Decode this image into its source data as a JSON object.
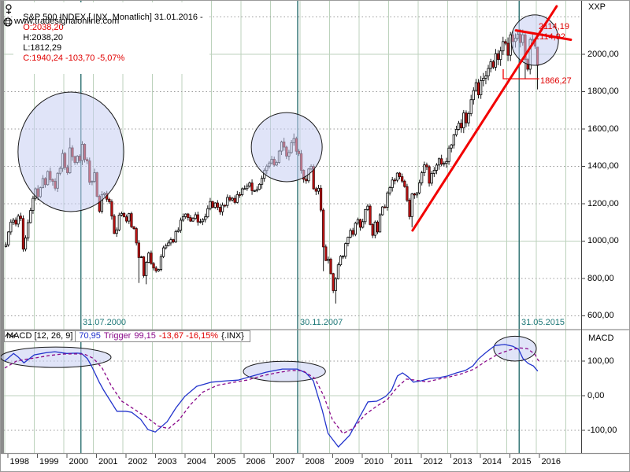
{
  "header": {
    "title": "S&P 500 INDEX [.INX  Monatlich] 31.01.2016 -",
    "open": "O:2038,20",
    "high": "H:2038,20",
    "low": "L:1812,29",
    "close": "C:1940,24 -103,70 -5,07%",
    "right_corner_label": "XXP",
    "watermark": "www.tradesignalonline.com"
  },
  "macd_header": {
    "name": "MACD [12, 26, 9]",
    "value": "70,95",
    "trigger_label": "Trigger",
    "trigger_value": "99,15",
    "change": "-13,67 -16,15%",
    "symbol": "{.INX}",
    "axis_title": "MACD"
  },
  "annotations": {
    "top_level_1": "2114,19",
    "top_level_2": "2114,92",
    "low_level": "1866,27",
    "date_markers": [
      "31.07.2000",
      "30.11.2007",
      "31.05.2015"
    ]
  },
  "colors": {
    "candle_up": "#ffffff",
    "candle_down": "#c81414",
    "candle_down_stroke": "#3a0000",
    "wick": "#000000",
    "macd_line": "#2233cc",
    "trigger_line": "#8a0a8a",
    "annotation_red": "#f20000",
    "marker_teal": "#2a6f6f",
    "grid_green": "#bcd2bc",
    "grid_dot": "#9a9a9a",
    "ellipse_fill": "#c7cdf2",
    "ellipse_stroke": "#1a1a1a",
    "frame": "#8c8c8c"
  },
  "chart_data": {
    "type": "candlestick",
    "title": "S&P 500 INDEX monthly with MACD",
    "axes": {
      "years": [
        "1998",
        "1999",
        "2000",
        "2001",
        "2002",
        "2003",
        "2004",
        "2005",
        "2006",
        "2007",
        "2008",
        "2009",
        "2010",
        "2011",
        "2012",
        "2013",
        "2014",
        "2015",
        "2016"
      ],
      "price_tick_labels": [
        "2000,00",
        "1800,00",
        "1600,00",
        "1400,00",
        "1200,00",
        "1000,00",
        "800,00",
        "600,00"
      ],
      "price_tick_values": [
        2000,
        1800,
        1600,
        1400,
        1200,
        1000,
        800,
        600
      ],
      "macd_tick_labels": [
        "100,00",
        "0,00",
        "-100,00"
      ],
      "macd_tick_values": [
        100,
        0,
        -100
      ],
      "price_range": [
        560,
        2280
      ],
      "macd_range": [
        -160,
        175
      ],
      "grid": "on"
    },
    "price_panel": {
      "interval": "monthly",
      "start_year": 1998,
      "first_open": 970,
      "monthly_closes": [
        980,
        1049,
        1102,
        1112,
        1091,
        1134,
        1121,
        957,
        1017,
        1099,
        1164,
        1229,
        1280,
        1238,
        1286,
        1335,
        1302,
        1373,
        1329,
        1320,
        1283,
        1363,
        1389,
        1469,
        1394,
        1366,
        1499,
        1452,
        1421,
        1455,
        1431,
        1518,
        1437,
        1429,
        1315,
        1320,
        1366,
        1240,
        1160,
        1249,
        1256,
        1224,
        1211,
        1134,
        1041,
        1060,
        1139,
        1148,
        1130,
        1107,
        1147,
        1077,
        1067,
        990,
        912,
        916,
        815,
        886,
        936,
        880,
        856,
        841,
        848,
        917,
        964,
        975,
        990,
        1008,
        996,
        1051,
        1058,
        1112,
        1131,
        1145,
        1126,
        1107,
        1121,
        1141,
        1102,
        1104,
        1115,
        1130,
        1174,
        1212,
        1181,
        1204,
        1181,
        1157,
        1192,
        1191,
        1234,
        1220,
        1229,
        1207,
        1249,
        1248,
        1280,
        1281,
        1295,
        1311,
        1270,
        1270,
        1277,
        1304,
        1336,
        1378,
        1401,
        1418,
        1438,
        1407,
        1421,
        1482,
        1531,
        1503,
        1455,
        1474,
        1527,
        1549,
        1481,
        1468,
        1379,
        1331,
        1323,
        1386,
        1400,
        1280,
        1267,
        1283,
        1166,
        969,
        896,
        903,
        826,
        735,
        798,
        873,
        919,
        919,
        987,
        1021,
        1057,
        1036,
        1096,
        1115,
        1074,
        1104,
        1169,
        1187,
        1089,
        1031,
        1102,
        1049,
        1141,
        1183,
        1181,
        1258,
        1286,
        1327,
        1326,
        1364,
        1345,
        1321,
        1292,
        1219,
        1131,
        1253,
        1247,
        1258,
        1312,
        1366,
        1408,
        1398,
        1310,
        1362,
        1379,
        1407,
        1441,
        1412,
        1416,
        1426,
        1498,
        1515,
        1569,
        1598,
        1631,
        1606,
        1686,
        1633,
        1682,
        1757,
        1806,
        1848,
        1783,
        1859,
        1872,
        1884,
        1924,
        1960,
        1931,
        2003,
        1972,
        2018,
        2068,
        2059,
        1995,
        2104,
        2068,
        2086,
        2107,
        2063,
        2104,
        1972,
        1920,
        2079,
        2080,
        2044,
        1940.24
      ],
      "low_overrides": {
        "54": 776,
        "57": 769,
        "129": 839,
        "134": 666,
        "165": 1074,
        "211": 1867
      },
      "high_overrides": {
        "26": 1553,
        "117": 1576,
        "208": 2126
      },
      "last_candle": {
        "open": 2038.2,
        "high": 2038.2,
        "low": 1812.29,
        "close": 1940.24
      }
    },
    "macd_panel": {
      "series": [
        {
          "name": "MACD",
          "style": "solid",
          "points": [
            [
              1998.0,
              100
            ],
            [
              1998.3,
              122
            ],
            [
              1998.45,
              112
            ],
            [
              1998.65,
              95
            ],
            [
              1999.0,
              118
            ],
            [
              1999.4,
              124
            ],
            [
              1999.7,
              127
            ],
            [
              2000.1,
              122
            ],
            [
              2000.45,
              123
            ],
            [
              2000.6,
              122
            ],
            [
              2000.8,
              107
            ],
            [
              2000.95,
              84
            ],
            [
              2001.2,
              39
            ],
            [
              2001.35,
              16
            ],
            [
              2001.8,
              -45
            ],
            [
              2002.1,
              -45
            ],
            [
              2002.3,
              -48
            ],
            [
              2002.6,
              -68
            ],
            [
              2002.85,
              -98
            ],
            [
              2003.1,
              -105
            ],
            [
              2003.5,
              -75
            ],
            [
              2003.8,
              -35
            ],
            [
              2004.1,
              -2
            ],
            [
              2004.5,
              27
            ],
            [
              2005.0,
              39
            ],
            [
              2005.5,
              43
            ],
            [
              2005.9,
              45
            ],
            [
              2006.4,
              57
            ],
            [
              2006.85,
              68
            ],
            [
              2007.4,
              77
            ],
            [
              2007.9,
              77
            ],
            [
              2008.2,
              66
            ],
            [
              2008.45,
              43
            ],
            [
              2008.6,
              0
            ],
            [
              2008.75,
              -41
            ],
            [
              2008.95,
              -109
            ],
            [
              2009.3,
              -148
            ],
            [
              2009.68,
              -114
            ],
            [
              2010.0,
              -64
            ],
            [
              2010.3,
              -18
            ],
            [
              2010.6,
              -16
            ],
            [
              2010.9,
              -2
            ],
            [
              2011.1,
              16
            ],
            [
              2011.3,
              57
            ],
            [
              2011.47,
              66
            ],
            [
              2011.65,
              55
            ],
            [
              2011.84,
              39
            ],
            [
              2012.1,
              43
            ],
            [
              2012.4,
              50
            ],
            [
              2012.7,
              52
            ],
            [
              2013.0,
              57
            ],
            [
              2013.3,
              66
            ],
            [
              2013.6,
              73
            ],
            [
              2013.85,
              86
            ],
            [
              2014.05,
              107
            ],
            [
              2014.3,
              125
            ],
            [
              2014.6,
              145
            ],
            [
              2014.93,
              148
            ],
            [
              2015.2,
              143
            ],
            [
              2015.4,
              134
            ],
            [
              2015.55,
              107
            ],
            [
              2015.73,
              93
            ],
            [
              2015.9,
              86
            ],
            [
              2016.05,
              71
            ]
          ]
        },
        {
          "name": "Trigger",
          "style": "dashed",
          "points": [
            [
              1998.0,
              80
            ],
            [
              1998.4,
              100
            ],
            [
              1998.7,
              105
            ],
            [
              1999.1,
              110
            ],
            [
              1999.5,
              116
            ],
            [
              1999.9,
              120
            ],
            [
              2000.3,
              121
            ],
            [
              2000.7,
              120
            ],
            [
              2001.0,
              108
            ],
            [
              2001.3,
              80
            ],
            [
              2001.6,
              30
            ],
            [
              2001.95,
              -15
            ],
            [
              2002.4,
              -40
            ],
            [
              2002.8,
              -62
            ],
            [
              2003.2,
              -88
            ],
            [
              2003.55,
              -95
            ],
            [
              2003.9,
              -70
            ],
            [
              2004.3,
              -25
            ],
            [
              2004.7,
              10
            ],
            [
              2005.2,
              30
            ],
            [
              2005.7,
              38
            ],
            [
              2006.2,
              45
            ],
            [
              2006.7,
              57
            ],
            [
              2007.2,
              66
            ],
            [
              2007.7,
              73
            ],
            [
              2008.1,
              72
            ],
            [
              2008.5,
              50
            ],
            [
              2008.8,
              0
            ],
            [
              2009.1,
              -70
            ],
            [
              2009.45,
              -109
            ],
            [
              2009.8,
              -95
            ],
            [
              2010.2,
              -55
            ],
            [
              2010.6,
              -30
            ],
            [
              2010.95,
              -12
            ],
            [
              2011.3,
              25
            ],
            [
              2011.6,
              48
            ],
            [
              2011.9,
              45
            ],
            [
              2012.3,
              40
            ],
            [
              2012.7,
              48
            ],
            [
              2013.1,
              55
            ],
            [
              2013.5,
              64
            ],
            [
              2013.9,
              77
            ],
            [
              2014.3,
              100
            ],
            [
              2014.7,
              120
            ],
            [
              2015.1,
              132
            ],
            [
              2015.45,
              138
            ],
            [
              2015.7,
              136
            ],
            [
              2015.95,
              120
            ],
            [
              2016.08,
              100
            ]
          ]
        }
      ]
    },
    "overlays": {
      "date_marker_times": [
        2000.58,
        2007.92,
        2015.42
      ],
      "price_ellipses": [
        {
          "t": 2000.24,
          "p": 1478,
          "rt": 1.79,
          "rp": 320
        },
        {
          "t": 2007.55,
          "p": 1503,
          "rt": 1.2,
          "rp": 185
        },
        {
          "t": 2015.95,
          "p": 2076,
          "rt": 0.8,
          "rp": 135
        }
      ],
      "macd_ellipses": [
        {
          "t": 1999.73,
          "v": 111,
          "rt": 1.87,
          "rv": 29.5
        },
        {
          "t": 2007.47,
          "v": 70,
          "rt": 1.39,
          "rv": 29.5
        },
        {
          "t": 2015.28,
          "v": 136,
          "rt": 0.72,
          "rv": 36
        }
      ],
      "trendlines": [
        {
          "from": [
            2011.81,
            1057
          ],
          "to": [
            2016.69,
            2257
          ],
          "width": 3
        },
        {
          "from": [
            2015.31,
            2128
          ],
          "to": [
            2017.17,
            2078
          ],
          "width": 3
        }
      ],
      "leader_line": [
        [
          2014.88,
          1920
        ],
        [
          2014.88,
          1869
        ],
        [
          2016.1,
          1869
        ]
      ]
    }
  }
}
